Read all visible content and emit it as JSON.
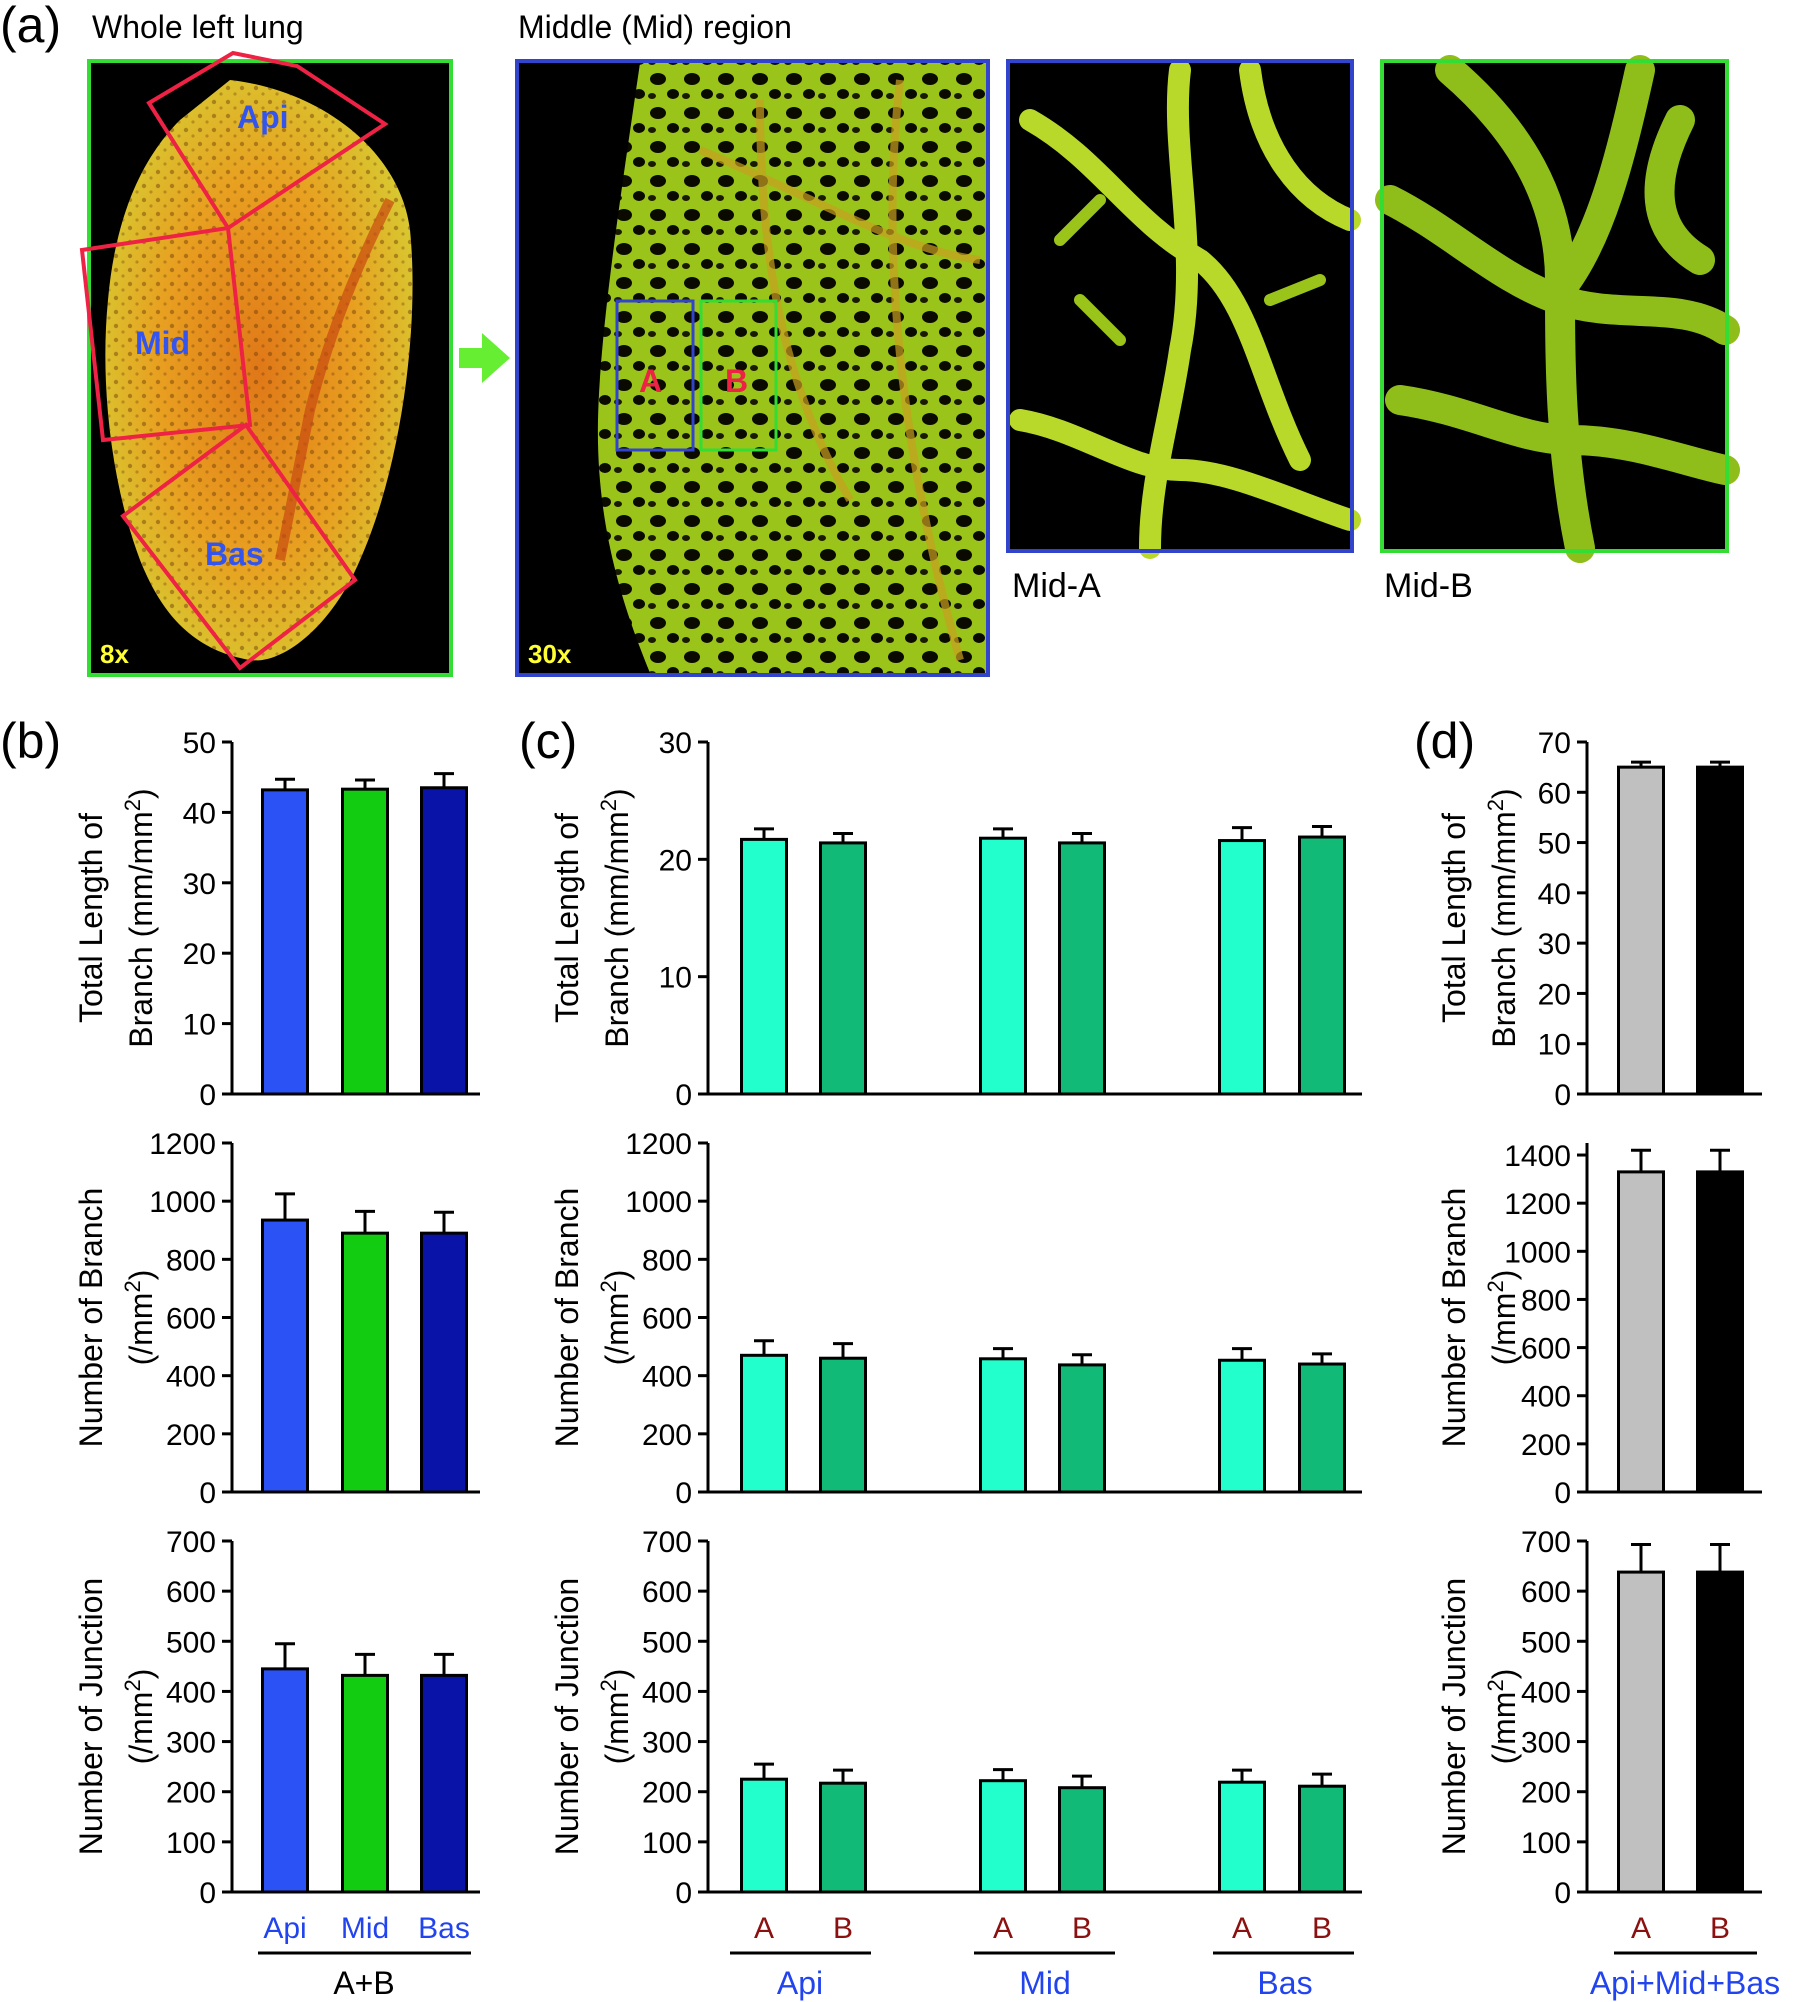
{
  "panel_a": {
    "label": "(a)",
    "whole_lung": {
      "title": "Whole left lung",
      "regions": [
        "Api",
        "Mid",
        "Bas"
      ],
      "magnification": "8x"
    },
    "middle": {
      "title": "Middle (Mid) region",
      "roi": [
        "A",
        "B"
      ],
      "magnification": "30x"
    },
    "insets": [
      "Mid-A",
      "Mid-B"
    ],
    "colors": {
      "frame_green": "#33dd33",
      "frame_blue": "#3344cc",
      "roi_red": "#ee2244",
      "region_label_blue": "#3355ee",
      "mag_yellow": "#ffff33",
      "arrow_green": "#66ee33"
    }
  },
  "panel_labels": {
    "b": "(b)",
    "c": "(c)",
    "d": "(d)"
  },
  "ylabels": {
    "length": [
      "Total Length of",
      "Branch (mm/mm",
      "2",
      ")"
    ],
    "number": [
      "Number of Branch",
      "(/mm",
      "2",
      ")"
    ],
    "junction": [
      "Number of Junction",
      "(/mm",
      "2",
      ")"
    ]
  },
  "x_labels": {
    "b": {
      "ticks": [
        "Api",
        "Mid",
        "Bas"
      ],
      "group": "A+B"
    },
    "c": {
      "ticks": [
        "A",
        "B",
        "A",
        "B",
        "A",
        "B"
      ],
      "groups": [
        "Api",
        "Mid",
        "Bas"
      ]
    },
    "d": {
      "ticks": [
        "A",
        "B"
      ],
      "group": "Api+Mid+Bas"
    }
  },
  "chart_colors": {
    "api": "#2b52f5",
    "mid": "#11cc11",
    "bas": "#0a13a8",
    "c_A": "#22ffcc",
    "c_B": "#11bb77",
    "d_A": "#c0c0c0",
    "d_B": "#000000",
    "tick_red": "#8b1010",
    "tick_blue": "#2244ee"
  },
  "chart_data": [
    {
      "id": "b-length",
      "type": "bar",
      "categories": [
        "Api",
        "Mid",
        "Bas"
      ],
      "values": [
        43.2,
        43.3,
        43.5
      ],
      "errors": [
        1.5,
        1.3,
        2.0
      ],
      "ylim": [
        0,
        50
      ],
      "yticks": [
        0,
        10,
        20,
        30,
        40,
        50
      ]
    },
    {
      "id": "b-number",
      "type": "bar",
      "categories": [
        "Api",
        "Mid",
        "Bas"
      ],
      "values": [
        935,
        890,
        890
      ],
      "errors": [
        90,
        75,
        72
      ],
      "ylim": [
        0,
        1200
      ],
      "yticks": [
        0,
        200,
        400,
        600,
        800,
        1000,
        1200
      ]
    },
    {
      "id": "b-junction",
      "type": "bar",
      "categories": [
        "Api",
        "Mid",
        "Bas"
      ],
      "values": [
        445,
        432,
        432
      ],
      "errors": [
        50,
        42,
        42
      ],
      "ylim": [
        0,
        700
      ],
      "yticks": [
        0,
        100,
        200,
        300,
        400,
        500,
        600,
        700
      ]
    },
    {
      "id": "c-length",
      "type": "bar",
      "categories": [
        "Api A",
        "Api B",
        "Mid A",
        "Mid B",
        "Bas A",
        "Bas B"
      ],
      "values": [
        21.7,
        21.4,
        21.8,
        21.4,
        21.6,
        21.9
      ],
      "errors": [
        0.9,
        0.8,
        0.8,
        0.8,
        1.1,
        0.9
      ],
      "ylim": [
        0,
        30
      ],
      "yticks": [
        0,
        10,
        20,
        30
      ]
    },
    {
      "id": "c-number",
      "type": "bar",
      "categories": [
        "Api A",
        "Api B",
        "Mid A",
        "Mid B",
        "Bas A",
        "Bas B"
      ],
      "values": [
        470,
        460,
        458,
        437,
        453,
        440
      ],
      "errors": [
        50,
        50,
        35,
        35,
        40,
        35
      ],
      "ylim": [
        0,
        1200
      ],
      "yticks": [
        0,
        200,
        400,
        600,
        800,
        1000,
        1200
      ]
    },
    {
      "id": "c-junction",
      "type": "bar",
      "categories": [
        "Api A",
        "Api B",
        "Mid A",
        "Mid B",
        "Bas A",
        "Bas B"
      ],
      "values": [
        225,
        217,
        222,
        208,
        219,
        211
      ],
      "errors": [
        30,
        26,
        22,
        23,
        24,
        24
      ],
      "ylim": [
        0,
        700
      ],
      "yticks": [
        0,
        100,
        200,
        300,
        400,
        500,
        600,
        700
      ]
    },
    {
      "id": "d-length",
      "type": "bar",
      "categories": [
        "A",
        "B"
      ],
      "values": [
        65.0,
        65.0
      ],
      "errors": [
        1.0,
        1.0
      ],
      "ylim": [
        0,
        70
      ],
      "yticks": [
        0,
        10,
        20,
        30,
        40,
        50,
        60,
        70
      ]
    },
    {
      "id": "d-number",
      "type": "bar",
      "categories": [
        "A",
        "B"
      ],
      "values": [
        1330,
        1330
      ],
      "errors": [
        90,
        90
      ],
      "ylim": [
        0,
        1450
      ],
      "yticks": [
        0,
        200,
        400,
        600,
        800,
        1000,
        1200,
        1400
      ]
    },
    {
      "id": "d-junction",
      "type": "bar",
      "categories": [
        "A",
        "B"
      ],
      "values": [
        638,
        638
      ],
      "errors": [
        55,
        55
      ],
      "ylim": [
        0,
        700
      ],
      "yticks": [
        0,
        100,
        200,
        300,
        400,
        500,
        600,
        700
      ]
    }
  ]
}
